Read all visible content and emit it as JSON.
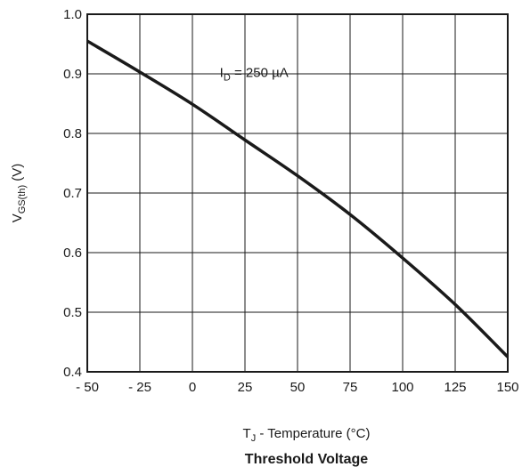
{
  "chart_data": {
    "type": "line",
    "title": "Threshold Voltage",
    "xlabel": {
      "main": "T",
      "sub": "J",
      "rest": " - Temperature (°C)"
    },
    "ylabel": {
      "main": "V",
      "sub": "GS(th)",
      "rest": " (V)"
    },
    "xlim": [
      -50,
      150
    ],
    "ylim": [
      0.4,
      1.0
    ],
    "x_ticks": [
      -50,
      -25,
      0,
      25,
      50,
      75,
      100,
      125,
      150
    ],
    "x_tick_labels": [
      "- 50",
      "- 25",
      "0",
      "25",
      "50",
      "75",
      "100",
      "125",
      "150"
    ],
    "y_ticks": [
      0.4,
      0.5,
      0.6,
      0.7,
      0.8,
      0.9,
      1.0
    ],
    "y_tick_labels": [
      "0.4",
      "0.5",
      "0.6",
      "0.7",
      "0.8",
      "0.9",
      "1.0"
    ],
    "grid": true,
    "annotation": {
      "main": "I",
      "sub": "D",
      "rest": " = 250 µA",
      "x": 13,
      "y": 0.85
    },
    "series": [
      {
        "x": [
          -50,
          -25,
          0,
          25,
          50,
          75,
          100,
          125,
          150
        ],
        "y": [
          0.955,
          0.903,
          0.849,
          0.789,
          0.729,
          0.664,
          0.591,
          0.513,
          0.425
        ]
      }
    ]
  }
}
